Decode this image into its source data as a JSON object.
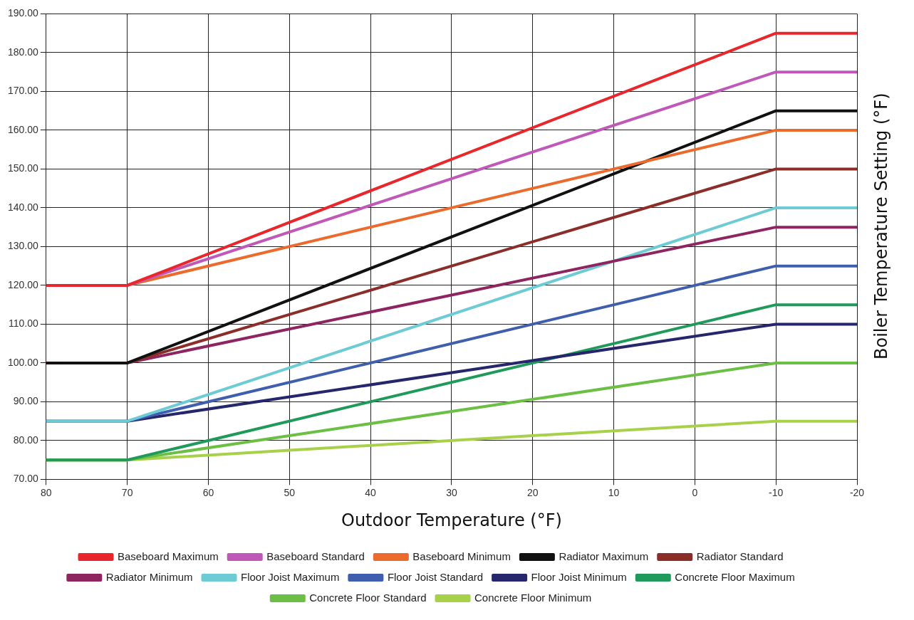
{
  "chart_data": {
    "type": "line",
    "xlabel": "Outdoor Temperature (°F)",
    "ylabel": "Boiler Temperature Setting (°F)",
    "x": [
      80,
      70,
      -10,
      -20
    ],
    "xlim": [
      80,
      -20
    ],
    "xticks": [
      80,
      70,
      60,
      50,
      40,
      30,
      20,
      10,
      0,
      -10,
      -20
    ],
    "ylim": [
      70,
      190
    ],
    "yticks": [
      {
        "value": 70,
        "label": "70.00"
      },
      {
        "value": 80,
        "label": "80.00"
      },
      {
        "value": 90,
        "label": "90.00"
      },
      {
        "value": 100,
        "label": "100.00"
      },
      {
        "value": 110,
        "label": "110.00"
      },
      {
        "value": 120,
        "label": "120.00"
      },
      {
        "value": 130,
        "label": "130.00"
      },
      {
        "value": 140,
        "label": "140.00"
      },
      {
        "value": 150,
        "label": "150.00"
      },
      {
        "value": 160,
        "label": "160.00"
      },
      {
        "value": 170,
        "label": "170.00"
      },
      {
        "value": 180,
        "label": "180.00"
      },
      {
        "value": 190,
        "label": "190.00"
      }
    ],
    "grid": true,
    "legend": "bottom",
    "marker": "none",
    "line_style": "solid",
    "series": [
      {
        "name": "Baseboard Maximum",
        "color": "#e8262b",
        "values": [
          120,
          120,
          185,
          185
        ]
      },
      {
        "name": "Baseboard Standard",
        "color": "#c058b8",
        "values": [
          120,
          120,
          175,
          175
        ]
      },
      {
        "name": "Baseboard Minimum",
        "color": "#ec6a2c",
        "values": [
          120,
          120,
          160,
          160
        ]
      },
      {
        "name": "Radiator Maximum",
        "color": "#111111",
        "values": [
          100,
          100,
          165,
          165
        ]
      },
      {
        "name": "Radiator Standard",
        "color": "#8b2e2a",
        "values": [
          100,
          100,
          150,
          150
        ]
      },
      {
        "name": "Radiator Minimum",
        "color": "#8e2460",
        "values": [
          100,
          100,
          135,
          135
        ]
      },
      {
        "name": "Floor Joist Maximum",
        "color": "#6ccbd4",
        "values": [
          85,
          85,
          140,
          140
        ]
      },
      {
        "name": "Floor Joist Standard",
        "color": "#3f5fae",
        "values": [
          85,
          85,
          125,
          125
        ]
      },
      {
        "name": "Floor Joist Minimum",
        "color": "#25266b",
        "values": [
          85,
          85,
          110,
          110
        ]
      },
      {
        "name": "Concrete Floor Maximum",
        "color": "#1f9a5a",
        "values": [
          75,
          75,
          115,
          115
        ]
      },
      {
        "name": "Concrete Floor Standard",
        "color": "#6cbf45",
        "values": [
          75,
          75,
          100,
          100
        ]
      },
      {
        "name": "Concrete Floor Minimum",
        "color": "#a8d14a",
        "values": [
          75,
          75,
          85,
          85
        ]
      }
    ]
  }
}
